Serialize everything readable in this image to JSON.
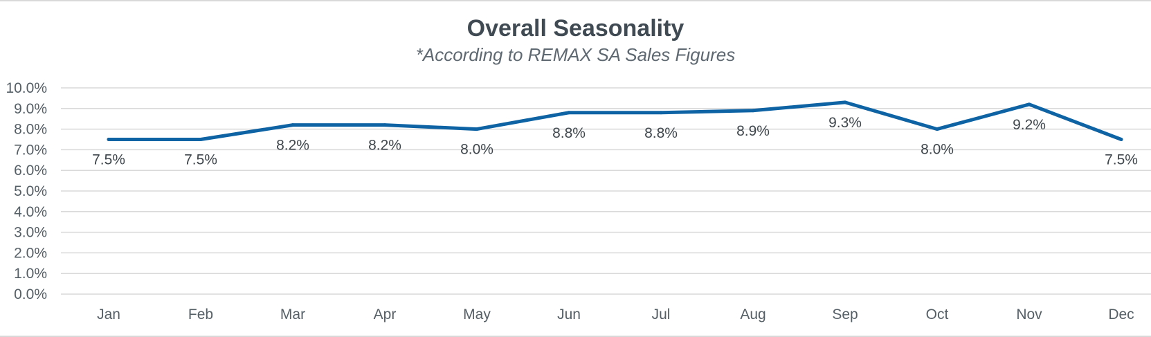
{
  "chart_data": {
    "type": "line",
    "title": "Overall Seasonality",
    "subtitle": "*According to REMAX SA Sales Figures",
    "categories": [
      "Jan",
      "Feb",
      "Mar",
      "Apr",
      "May",
      "Jun",
      "Jul",
      "Aug",
      "Sep",
      "Oct",
      "Nov",
      "Dec"
    ],
    "series": [
      {
        "values": [
          7.5,
          7.5,
          8.2,
          8.2,
          8.0,
          8.8,
          8.8,
          8.9,
          9.3,
          8.0,
          9.2,
          7.5
        ],
        "data_labels": [
          "7.5%",
          "7.5%",
          "8.2%",
          "8.2%",
          "8.0%",
          "8.8%",
          "8.8%",
          "8.9%",
          "9.3%",
          "8.0%",
          "9.2%",
          "7.5%"
        ],
        "color": "#0e63a4"
      }
    ],
    "ylim": [
      0,
      10
    ],
    "yticks": [
      0,
      1,
      2,
      3,
      4,
      5,
      6,
      7,
      8,
      9,
      10
    ],
    "ytick_labels": [
      "0.0%",
      "1.0%",
      "2.0%",
      "3.0%",
      "4.0%",
      "5.0%",
      "6.0%",
      "7.0%",
      "8.0%",
      "9.0%",
      "10.0%"
    ],
    "grid": true,
    "legend": "none",
    "colors": {
      "line": "#0e63a4",
      "grid": "#d9d9d9",
      "title": "#3f4a52"
    }
  }
}
